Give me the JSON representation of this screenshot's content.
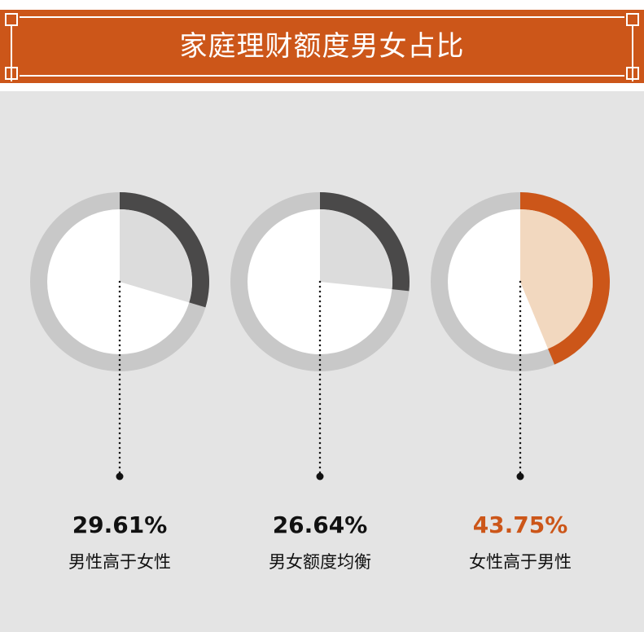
{
  "header": {
    "title": "家庭理财额度男女占比"
  },
  "colors": {
    "brand": "#cc5619",
    "dark": "#4a4949",
    "ring": "#c8c8c8",
    "wedge_gray": "#dcdcdc",
    "wedge_orange": "#f2d8bf"
  },
  "chart_data": {
    "type": "pie",
    "items": [
      {
        "value": 29.61,
        "value_label": "29.61%",
        "label": "男性高于女性",
        "highlight": false
      },
      {
        "value": 26.64,
        "value_label": "26.64%",
        "label": "男女额度均衡",
        "highlight": false
      },
      {
        "value": 43.75,
        "value_label": "43.75%",
        "label": "女性高于男性",
        "highlight": true
      }
    ]
  }
}
